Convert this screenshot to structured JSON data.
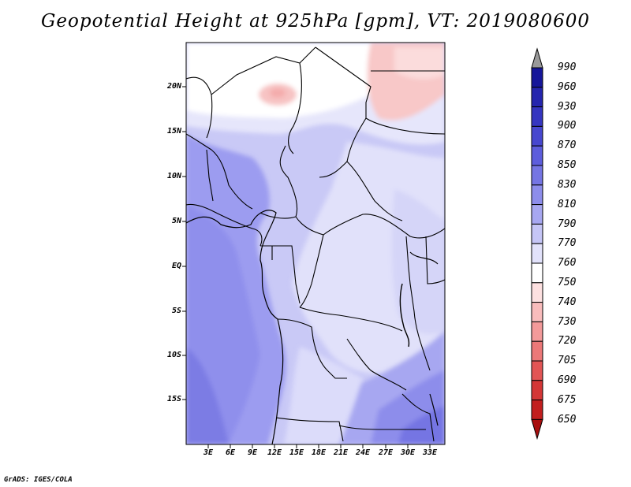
{
  "title": "Geopotential Height at 925hPa [gpm], VT: 2019080600",
  "credit": "GrADS: IGES/COLA",
  "map": {
    "lat_labels": [
      "20N",
      "15N",
      "10N",
      "5N",
      "EQ",
      "5S",
      "10S",
      "15S"
    ],
    "lon_labels": [
      "3E",
      "6E",
      "9E",
      "12E",
      "15E",
      "18E",
      "21E",
      "24E",
      "27E",
      "30E",
      "33E"
    ]
  },
  "colorbar": {
    "levels": [
      "990",
      "960",
      "930",
      "900",
      "870",
      "850",
      "830",
      "810",
      "790",
      "770",
      "760",
      "750",
      "740",
      "730",
      "720",
      "705",
      "690",
      "675",
      "650"
    ],
    "colors": [
      "#16169a",
      "#2525ae",
      "#3535c0",
      "#4747cf",
      "#5d5ddc",
      "#7575e3",
      "#8d8deb",
      "#a7a7f1",
      "#c5c5f6",
      "#e2e2fb",
      "#ffffff",
      "#fde0e0",
      "#f9bcbc",
      "#f39a9a",
      "#ec7878",
      "#e25555",
      "#d43636",
      "#c21e1e",
      "#a80f0f"
    ]
  }
}
